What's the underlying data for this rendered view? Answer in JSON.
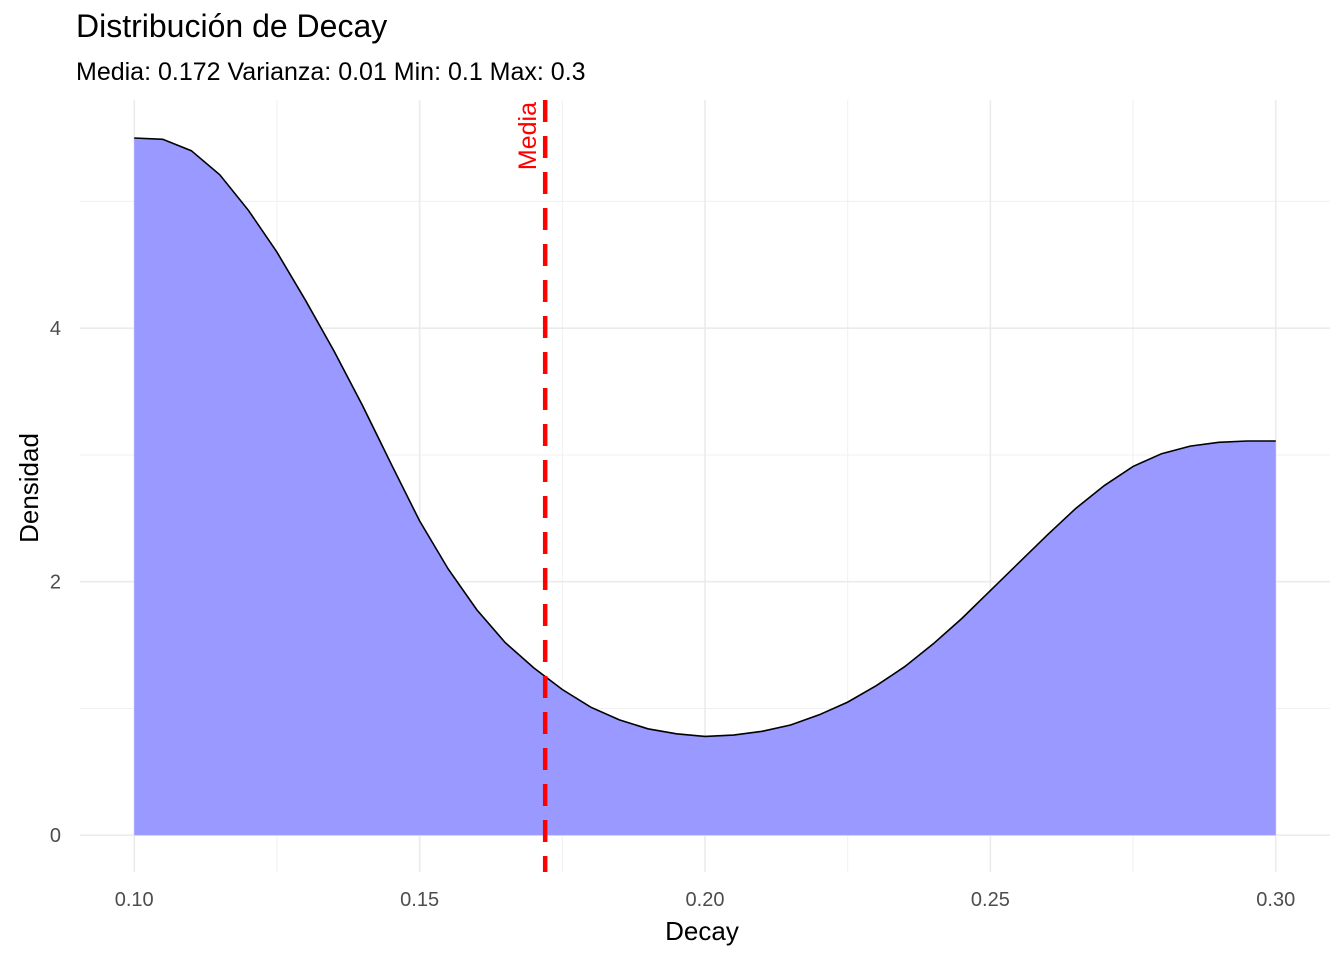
{
  "chart_data": {
    "type": "area",
    "title": "Distribución de Decay",
    "subtitle": "Media: 0.172 Varianza: 0.01 Min: 0.1 Max: 0.3",
    "xlabel": "Decay",
    "ylabel": "Densidad",
    "xlim": [
      0.0905,
      0.3095
    ],
    "ylim": [
      -0.29,
      5.8
    ],
    "x_ticks": [
      "0.10",
      "0.15",
      "0.20",
      "0.25",
      "0.30"
    ],
    "x_tick_values": [
      0.1,
      0.15,
      0.2,
      0.25,
      0.3
    ],
    "y_ticks": [
      "0",
      "2",
      "4"
    ],
    "y_tick_values": [
      0,
      2,
      4
    ],
    "grid": true,
    "series": [
      {
        "fill": "#9999ff",
        "stroke": "#000000",
        "x": [
          0.1,
          0.105,
          0.11,
          0.115,
          0.12,
          0.125,
          0.13,
          0.135,
          0.14,
          0.145,
          0.15,
          0.155,
          0.16,
          0.165,
          0.17,
          0.175,
          0.18,
          0.185,
          0.19,
          0.195,
          0.2,
          0.205,
          0.21,
          0.215,
          0.22,
          0.225,
          0.23,
          0.235,
          0.24,
          0.245,
          0.25,
          0.255,
          0.26,
          0.265,
          0.27,
          0.275,
          0.28,
          0.285,
          0.29,
          0.295,
          0.3
        ],
        "y": [
          5.5,
          5.49,
          5.4,
          5.21,
          4.93,
          4.6,
          4.22,
          3.82,
          3.39,
          2.93,
          2.48,
          2.1,
          1.78,
          1.52,
          1.32,
          1.15,
          1.01,
          0.91,
          0.84,
          0.8,
          0.78,
          0.79,
          0.82,
          0.87,
          0.95,
          1.05,
          1.18,
          1.33,
          1.51,
          1.71,
          1.93,
          2.15,
          2.37,
          2.58,
          2.76,
          2.91,
          3.01,
          3.07,
          3.1,
          3.11,
          3.11
        ]
      }
    ],
    "mean_line": {
      "x": 0.172,
      "label": "Media",
      "color": "#ff0000"
    }
  }
}
